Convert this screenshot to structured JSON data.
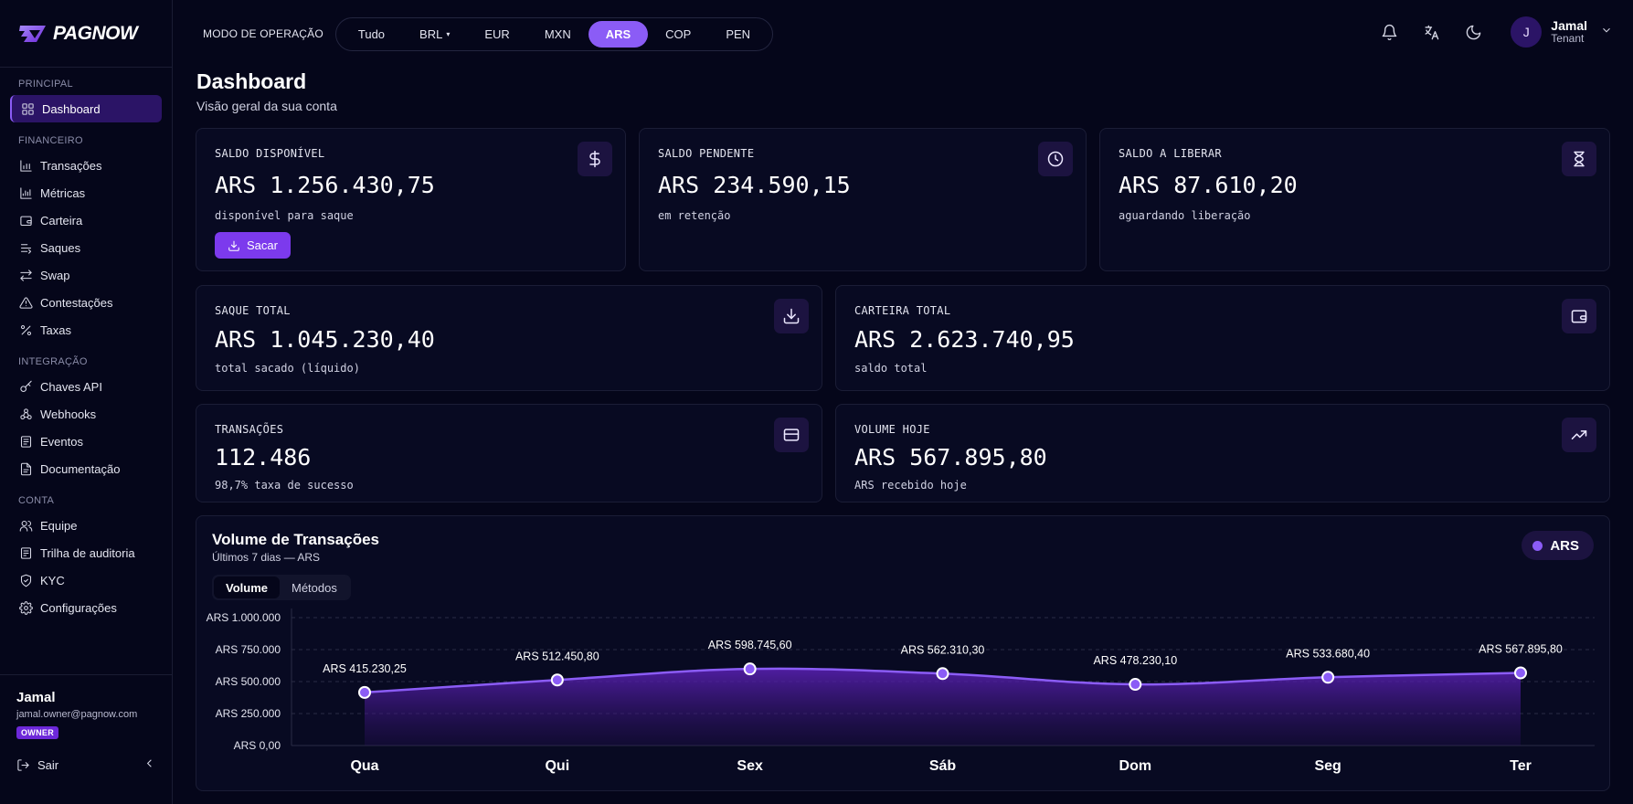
{
  "brand": {
    "name": "PAGNOW"
  },
  "sidebar": {
    "sections": [
      {
        "title": "PRINCIPAL",
        "items": [
          {
            "label": "Dashboard",
            "icon": "dashboard-icon",
            "active": true
          }
        ]
      },
      {
        "title": "FINANCEIRO",
        "items": [
          {
            "label": "Transações",
            "icon": "bar-chart-icon"
          },
          {
            "label": "Métricas",
            "icon": "metrics-icon"
          },
          {
            "label": "Carteira",
            "icon": "wallet-icon"
          },
          {
            "label": "Saques",
            "icon": "withdraw-icon"
          },
          {
            "label": "Swap",
            "icon": "swap-icon"
          },
          {
            "label": "Contestações",
            "icon": "warning-icon"
          },
          {
            "label": "Taxas",
            "icon": "percent-icon"
          }
        ]
      },
      {
        "title": "INTEGRAÇÃO",
        "items": [
          {
            "label": "Chaves API",
            "icon": "key-icon"
          },
          {
            "label": "Webhooks",
            "icon": "webhook-icon"
          },
          {
            "label": "Eventos",
            "icon": "events-icon"
          },
          {
            "label": "Documentação",
            "icon": "docs-icon"
          }
        ]
      },
      {
        "title": "CONTA",
        "items": [
          {
            "label": "Equipe",
            "icon": "team-icon"
          },
          {
            "label": "Trilha de auditoria",
            "icon": "audit-icon"
          },
          {
            "label": "KYC",
            "icon": "shield-icon"
          },
          {
            "label": "Configurações",
            "icon": "gear-icon"
          }
        ]
      }
    ],
    "footer": {
      "name": "Jamal",
      "email": "jamal.owner@pagnow.com",
      "badge": "OWNER",
      "logout": "Sair"
    }
  },
  "topbar": {
    "mode_label": "MODO DE OPERAÇÃO",
    "currencies": [
      {
        "label": "Tudo"
      },
      {
        "label": "BRL",
        "caret": true
      },
      {
        "label": "EUR"
      },
      {
        "label": "MXN"
      },
      {
        "label": "ARS",
        "active": true
      },
      {
        "label": "COP"
      },
      {
        "label": "PEN"
      }
    ],
    "user": {
      "initial": "J",
      "name": "Jamal",
      "role": "Tenant"
    }
  },
  "page": {
    "title": "Dashboard",
    "subtitle": "Visão geral da sua conta"
  },
  "cards": {
    "saldo_disponivel": {
      "label": "SALDO DISPONÍVEL",
      "value": "ARS 1.256.430,75",
      "desc": "disponível para saque",
      "button": "Sacar"
    },
    "saldo_pendente": {
      "label": "SALDO PENDENTE",
      "value": "ARS 234.590,15",
      "desc": "em retenção"
    },
    "saldo_liberar": {
      "label": "SALDO A LIBERAR",
      "value": "ARS 87.610,20",
      "desc": "aguardando liberação"
    },
    "saque_total": {
      "label": "SAQUE TOTAL",
      "value": "ARS 1.045.230,40",
      "desc": "total sacado (líquido)"
    },
    "carteira_total": {
      "label": "CARTEIRA TOTAL",
      "value": "ARS 2.623.740,95",
      "desc": "saldo total"
    },
    "transacoes": {
      "label": "TRANSAÇÕES",
      "value": "112.486",
      "desc": "98,7% taxa de sucesso"
    },
    "volume_hoje": {
      "label": "VOLUME HOJE",
      "value": "ARS 567.895,80",
      "desc": "ARS recebido hoje"
    }
  },
  "chart_panel": {
    "title": "Volume de Transações",
    "subtitle": "Últimos 7 dias — ARS",
    "tabs": [
      {
        "label": "Volume",
        "active": true
      },
      {
        "label": "Métodos"
      }
    ],
    "legend": "ARS",
    "accent": "#8b5cf6"
  },
  "chart_data": {
    "type": "area",
    "categories": [
      "Qua",
      "Qui",
      "Sex",
      "Sáb",
      "Dom",
      "Seg",
      "Ter"
    ],
    "series": [
      {
        "name": "ARS",
        "values": [
          415230.25,
          512450.8,
          598745.6,
          562310.3,
          478230.1,
          533680.4,
          567895.8
        ]
      }
    ],
    "data_labels": [
      "ARS 415.230,25",
      "ARS 512.450,80",
      "ARS 598.745,60",
      "ARS 562.310,30",
      "ARS 478.230,10",
      "ARS 533.680,40",
      "ARS 567.895,80"
    ],
    "ytick_labels": [
      "ARS 1.000.000",
      "ARS 750.000",
      "ARS 500.000",
      "ARS 250.000",
      "ARS 0,00"
    ],
    "yticks": [
      1000000,
      750000,
      500000,
      250000,
      0
    ],
    "ylim": [
      0,
      1000000
    ],
    "grid": true
  }
}
